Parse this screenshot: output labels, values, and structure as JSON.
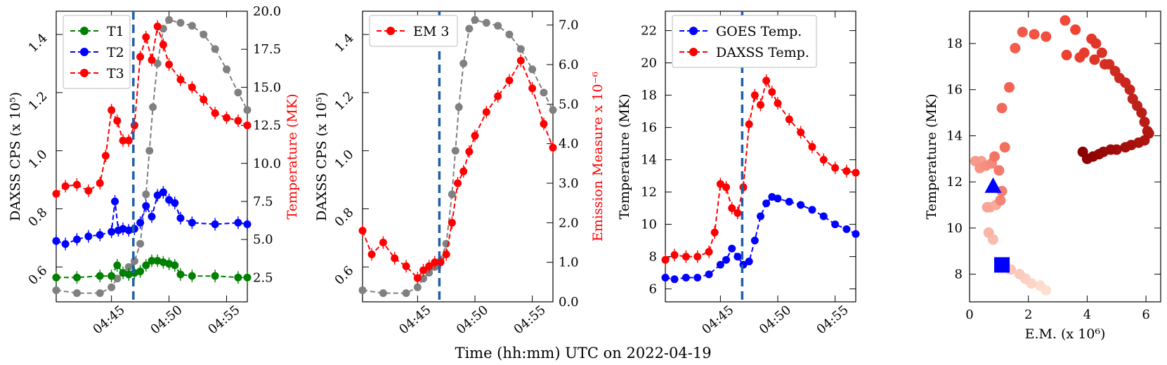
{
  "figure": {
    "shared_xlabel": "Time (hh:mm) UTC on 2022-04-19",
    "colors": {
      "gray": "#808080",
      "green": "#008000",
      "blue": "#0000ff",
      "red": "#ff0000",
      "vline": "#1f5fa8"
    }
  },
  "chart_data": [
    {
      "type": "line",
      "title": "",
      "ylabel_left": "DAXSS CPS (x 10^5)",
      "ylabel_right": "Temperature (MK)",
      "x_ticks": [
        "04:45",
        "04:50",
        "04:55"
      ],
      "y_left_ticks": [
        "0.6",
        "0.8",
        "1.0",
        "1.2",
        "1.4"
      ],
      "y_right_ticks": [
        "2.5",
        "5.0",
        "7.5",
        "10.0",
        "12.5",
        "15.0",
        "17.5",
        "20.0"
      ],
      "ylim_left": [
        0.48,
        1.48
      ],
      "ylim_right": [
        0.9,
        20.0
      ],
      "xlim_minutes": [
        40.2,
        56.8
      ],
      "vline_minute": 46.9,
      "legend": [
        "T1",
        "T2",
        "T3"
      ],
      "series": [
        {
          "name": "DAXSS CPS",
          "axis": "left",
          "color": "gray",
          "x": [
            40.2,
            42,
            44,
            45,
            45.5,
            46,
            46.5,
            47,
            47.5,
            48,
            48.3,
            48.6,
            49,
            49.5,
            50,
            51,
            52,
            53,
            54,
            55,
            56,
            56.8
          ],
          "y": [
            0.52,
            0.51,
            0.51,
            0.53,
            0.56,
            0.58,
            0.6,
            0.62,
            0.68,
            0.85,
            1.0,
            1.15,
            1.3,
            1.42,
            1.45,
            1.44,
            1.43,
            1.4,
            1.35,
            1.28,
            1.2,
            1.14
          ]
        },
        {
          "name": "T1",
          "axis": "right",
          "color": "green",
          "x": [
            40.2,
            42,
            44,
            45,
            45.5,
            46,
            46.5,
            47,
            47.5,
            48,
            48.5,
            49,
            49.5,
            50,
            50.5,
            51,
            52,
            54,
            56,
            56.8
          ],
          "y": [
            2.5,
            2.5,
            2.6,
            2.6,
            3.3,
            2.8,
            2.7,
            2.8,
            2.9,
            3.3,
            3.6,
            3.6,
            3.5,
            3.4,
            3.3,
            2.7,
            2.6,
            2.6,
            2.5,
            2.5
          ]
        },
        {
          "name": "T2",
          "axis": "right",
          "color": "blue",
          "x": [
            40.2,
            41,
            42,
            43,
            44,
            45,
            45.3,
            45.6,
            46,
            46.5,
            47,
            47.5,
            48,
            48.5,
            49,
            49.5,
            50,
            50.5,
            51,
            52,
            54,
            56,
            56.8
          ],
          "y": [
            4.9,
            4.7,
            5.0,
            5.2,
            5.3,
            5.5,
            7.5,
            5.6,
            5.7,
            5.6,
            5.7,
            6.1,
            7.2,
            6.5,
            7.9,
            8.1,
            7.6,
            7.4,
            6.4,
            6.1,
            6.0,
            6.1,
            6.0
          ]
        },
        {
          "name": "T3",
          "axis": "right",
          "color": "red",
          "x": [
            40.2,
            41,
            42,
            43,
            44,
            44.5,
            45,
            45.5,
            46,
            46.5,
            47,
            47.5,
            48,
            48.5,
            49,
            49.5,
            50,
            51,
            52,
            53,
            54,
            55,
            56,
            56.8
          ],
          "y": [
            8.0,
            8.5,
            8.6,
            8.2,
            8.7,
            10.5,
            13.5,
            12.8,
            11.5,
            11.5,
            12.5,
            17.0,
            18.3,
            16.8,
            19.0,
            17.8,
            16.5,
            15.5,
            15.0,
            14.2,
            13.3,
            13.0,
            12.8,
            12.5
          ]
        }
      ]
    },
    {
      "type": "line",
      "title": "",
      "ylabel_left": "DAXSS CPS (x 10^5)",
      "ylabel_right": "Emission Measure x 10^-6",
      "x_ticks": [
        "04:45",
        "04:50",
        "04:55"
      ],
      "y_left_ticks": [
        "0.6",
        "0.8",
        "1.0",
        "1.2",
        "1.4"
      ],
      "y_right_ticks": [
        "0.0",
        "1.0",
        "2.0",
        "3.0",
        "4.0",
        "5.0",
        "6.0",
        "7.0"
      ],
      "ylim_left": [
        0.48,
        1.48
      ],
      "ylim_right": [
        0.0,
        7.35
      ],
      "xlim_minutes": [
        40.2,
        56.8
      ],
      "vline_minute": 46.9,
      "legend": [
        "EM 3"
      ],
      "series": [
        {
          "name": "DAXSS CPS",
          "axis": "left",
          "color": "gray",
          "x": [
            40.2,
            42,
            44,
            45,
            45.5,
            46,
            46.5,
            47,
            47.5,
            48,
            48.3,
            48.6,
            49,
            49.5,
            50,
            51,
            52,
            53,
            54,
            55,
            56,
            56.8
          ],
          "y": [
            0.52,
            0.51,
            0.51,
            0.53,
            0.56,
            0.58,
            0.6,
            0.62,
            0.68,
            0.85,
            1.0,
            1.15,
            1.3,
            1.42,
            1.45,
            1.44,
            1.43,
            1.4,
            1.35,
            1.28,
            1.2,
            1.14
          ]
        },
        {
          "name": "EM 3",
          "axis": "right",
          "color": "red",
          "x": [
            40.2,
            41,
            42,
            43,
            44,
            45,
            45.5,
            46,
            46.5,
            47,
            47.5,
            48,
            48.5,
            49,
            49.5,
            50,
            51,
            52,
            53,
            54,
            55,
            56,
            56.8
          ],
          "y": [
            1.8,
            1.2,
            1.5,
            1.1,
            0.9,
            0.6,
            0.8,
            0.9,
            1.0,
            1.0,
            1.2,
            2.0,
            3.0,
            3.3,
            3.8,
            4.2,
            4.8,
            5.2,
            5.6,
            6.1,
            5.4,
            4.5,
            3.9
          ]
        }
      ]
    },
    {
      "type": "line",
      "title": "",
      "ylabel_left": "Temperature (MK)",
      "x_ticks": [
        "04:45",
        "04:50",
        "04:55"
      ],
      "y_left_ticks": [
        "6",
        "8",
        "10",
        "12",
        "14",
        "16",
        "18",
        "20",
        "22"
      ],
      "ylim_left": [
        5.2,
        23.2
      ],
      "xlim_minutes": [
        40.2,
        56.8
      ],
      "vline_minute": 46.9,
      "legend": [
        "GOES Temp.",
        "DAXSS Temp."
      ],
      "series": [
        {
          "name": "GOES Temp.",
          "axis": "left",
          "color": "blue",
          "x": [
            40.2,
            41,
            42,
            43,
            44,
            45,
            45.5,
            46,
            46.5,
            47,
            47.5,
            48,
            48.5,
            49,
            49.5,
            50,
            51,
            52,
            53,
            54,
            55,
            56,
            56.8
          ],
          "y": [
            6.7,
            6.6,
            6.7,
            6.7,
            6.9,
            7.5,
            7.8,
            8.5,
            8.0,
            7.5,
            7.7,
            9.0,
            10.5,
            11.3,
            11.7,
            11.6,
            11.4,
            11.2,
            10.9,
            10.5,
            10.0,
            9.7,
            9.4
          ]
        },
        {
          "name": "DAXSS Temp.",
          "axis": "left",
          "color": "red",
          "x": [
            40.2,
            41,
            42,
            43,
            44,
            44.5,
            45,
            45.5,
            46,
            46.5,
            47,
            47.5,
            48,
            48.5,
            49,
            49.5,
            50,
            51,
            52,
            53,
            54,
            55,
            56,
            56.8
          ],
          "y": [
            7.8,
            8.1,
            8.0,
            8.0,
            8.3,
            9.5,
            12.5,
            12.3,
            11.0,
            10.7,
            12.3,
            16.2,
            18.0,
            17.4,
            18.9,
            18.2,
            17.5,
            16.5,
            15.7,
            14.8,
            14.0,
            13.5,
            13.3,
            13.2
          ]
        }
      ]
    },
    {
      "type": "scatter",
      "title": "",
      "xlabel": "E.M. (x 10^6)",
      "ylabel": "Temperature (MK)",
      "x_ticks": [
        "0",
        "2",
        "4",
        "6"
      ],
      "y_ticks": [
        "8",
        "10",
        "12",
        "14",
        "16",
        "18"
      ],
      "xlim": [
        0,
        6.5
      ],
      "ylim": [
        6.8,
        19.4
      ],
      "color_gradient": [
        "#fde0d2",
        "#8b0000"
      ],
      "points_x": [
        2.6,
        2.4,
        2.1,
        1.9,
        1.7,
        1.4,
        1.2,
        0.8,
        0.65,
        0.7,
        0.9,
        0.6,
        0.4,
        0.2,
        0.35,
        0.55,
        0.75,
        1.05,
        1.1,
        1.0,
        0.85,
        1.2,
        1.1,
        1.35,
        1.55,
        1.8,
        2.2,
        2.6,
        3.25,
        3.6,
        3.3,
        3.75,
        3.9,
        4.15,
        4.3,
        4.25,
        4.5,
        4.6,
        4.75,
        4.95,
        5.1,
        5.3,
        5.45,
        5.55,
        5.7,
        5.85,
        5.95,
        6.05,
        6.1,
        5.95,
        5.75,
        5.5,
        5.3,
        5.0,
        4.8,
        4.55,
        4.4,
        4.2,
        4.0,
        3.85
      ],
      "points_y": [
        7.3,
        7.5,
        7.6,
        7.8,
        8.0,
        8.2,
        8.3,
        9.5,
        9.8,
        10.9,
        11.0,
        10.9,
        12.9,
        12.9,
        12.6,
        12.7,
        12.8,
        11.2,
        11.6,
        12.5,
        13.1,
        13.5,
        15.2,
        16.1,
        17.8,
        18.5,
        18.4,
        18.3,
        19.0,
        18.6,
        17.5,
        17.4,
        17.6,
        18.2,
        18.0,
        17.3,
        17.6,
        17.1,
        17.1,
        16.8,
        16.5,
        16.3,
        16.0,
        15.6,
        15.3,
        15.0,
        14.6,
        14.2,
        14.1,
        13.8,
        13.7,
        13.6,
        13.5,
        13.4,
        13.4,
        13.3,
        13.2,
        13.1,
        13.0,
        13.3
      ],
      "markers": [
        {
          "label": "start",
          "shape": "square",
          "x": 1.1,
          "y": 8.4,
          "color": "blue"
        },
        {
          "label": "vline-time",
          "shape": "triangle",
          "x": 0.8,
          "y": 11.8,
          "color": "blue"
        }
      ]
    }
  ]
}
